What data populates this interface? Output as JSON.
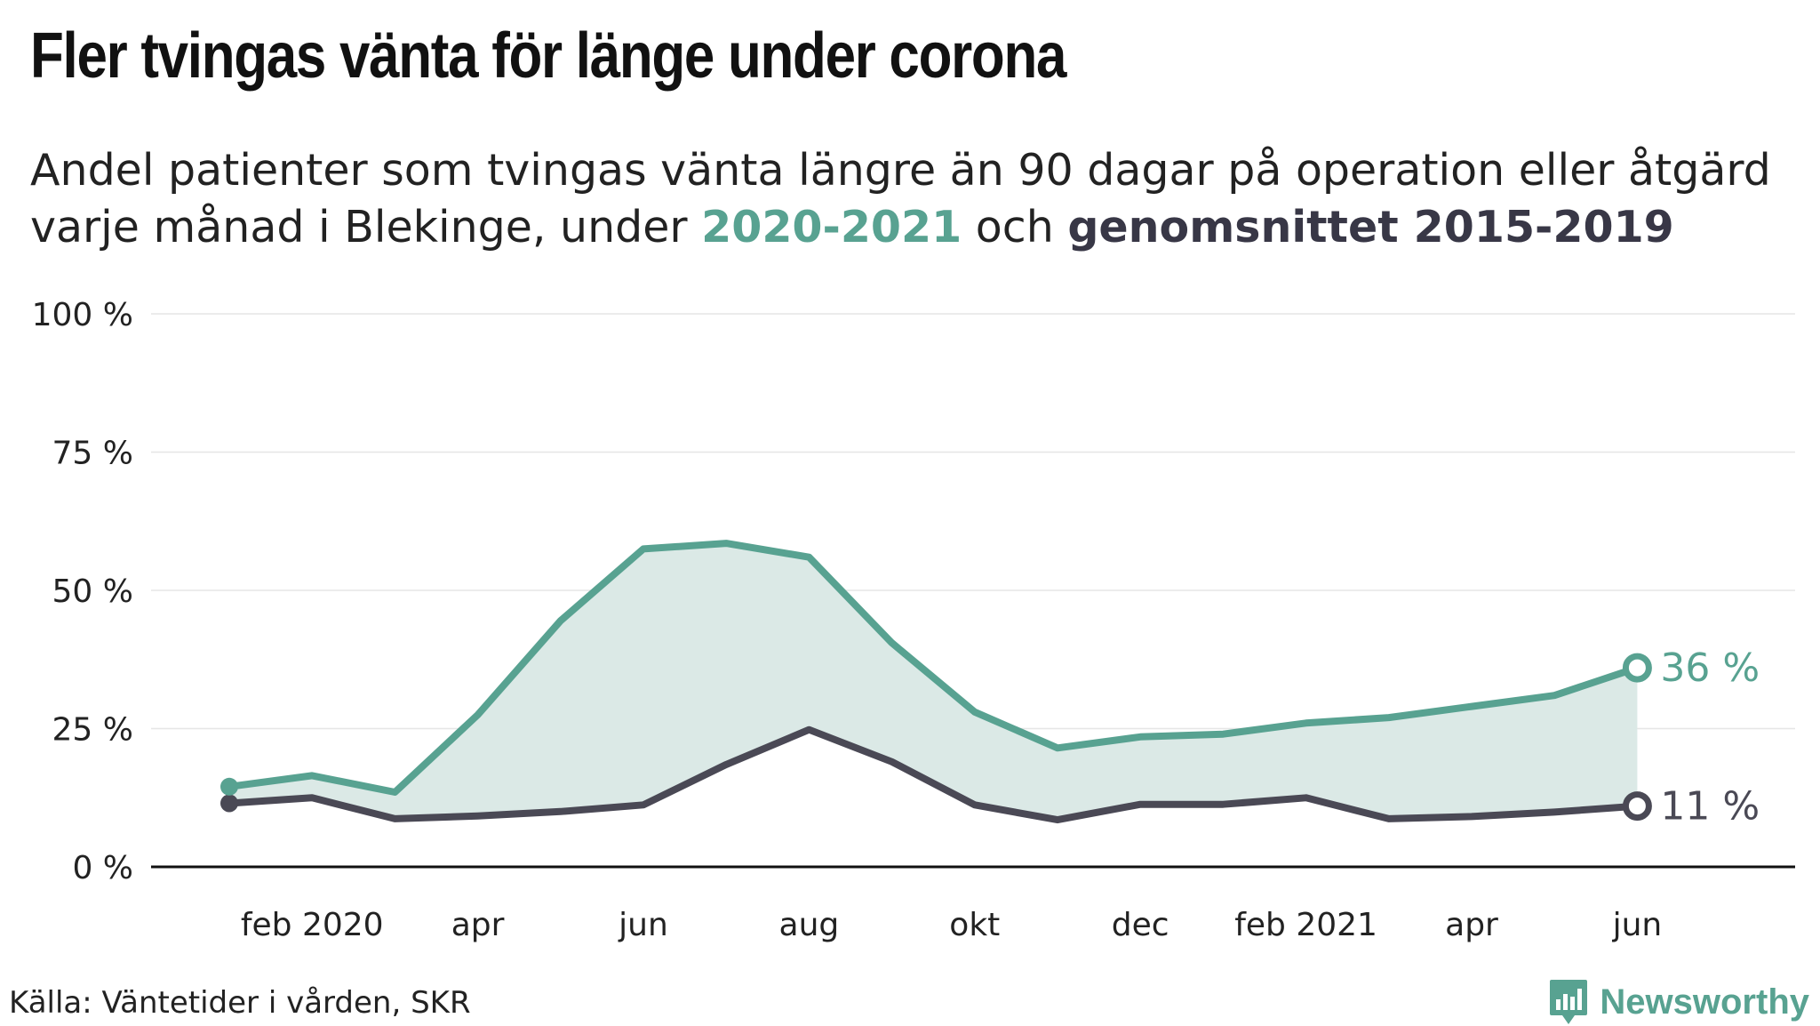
{
  "header": {
    "title": "Fler tvingas vänta för länge under corona",
    "subtitle_pre": "Andel patienter som tvingas vänta längre än 90 dagar på operation eller åtgärd varje månad i Blekinge, under ",
    "subtitle_hl_a": "2020-2021",
    "subtitle_mid": " och ",
    "subtitle_hl_b": "genomsnittet 2015-2019"
  },
  "footer": {
    "source": "Källa: Väntetider i vården, SKR",
    "brand": "Newsworthy"
  },
  "chart_data": {
    "type": "area",
    "title": "Fler tvingas vänta för länge under corona",
    "xlabel": "",
    "ylabel": "",
    "ylim": [
      0,
      100
    ],
    "y_ticks": [
      0,
      25,
      50,
      75,
      100
    ],
    "y_tick_labels": [
      "0 %",
      "25 %",
      "50 %",
      "75 %",
      "100 %"
    ],
    "x_tick_indices": [
      1,
      3,
      5,
      7,
      9,
      11,
      13,
      15,
      17
    ],
    "x_tick_labels": [
      "feb 2020",
      "apr",
      "jun",
      "aug",
      "okt",
      "dec",
      "feb 2021",
      "apr",
      "jun"
    ],
    "grid": true,
    "x": [
      "jan 2020",
      "feb 2020",
      "mar 2020",
      "apr 2020",
      "maj 2020",
      "jun 2020",
      "jul 2020",
      "aug 2020",
      "sep 2020",
      "okt 2020",
      "nov 2020",
      "dec 2020",
      "jan 2021",
      "feb 2021",
      "mar 2021",
      "apr 2021",
      "maj 2021",
      "jun 2021"
    ],
    "series": [
      {
        "name": "2020-2021",
        "color": "#58a291",
        "values": [
          14.5,
          16.5,
          13.5,
          27.5,
          44.5,
          57.5,
          58.5,
          56,
          40.5,
          28,
          21.5,
          23.5,
          24,
          26,
          27,
          29,
          31,
          36
        ],
        "end_label": "36 %"
      },
      {
        "name": "genomsnittet 2015-2019",
        "color": "#4a4955",
        "values": [
          11.5,
          12.5,
          8.7,
          9.2,
          10,
          11.2,
          18.5,
          24.8,
          19,
          11.2,
          8.5,
          11.3,
          11.3,
          12.5,
          8.7,
          9.1,
          9.9,
          11
        ],
        "end_label": "11 %"
      }
    ],
    "fill_between_color": "#dbe9e6"
  }
}
